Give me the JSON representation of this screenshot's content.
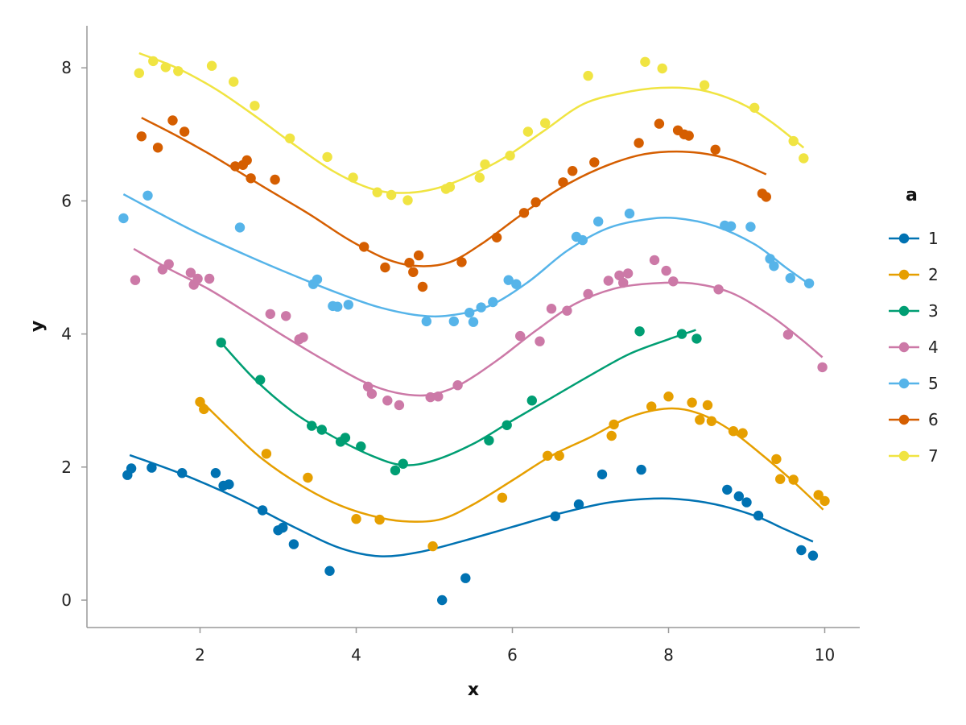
{
  "chart_data": {
    "type": "scatter",
    "xlabel": "x",
    "ylabel": "y",
    "xlim": [
      0.6,
      10.5
    ],
    "ylim": [
      -0.4,
      8.6
    ],
    "xticks": [
      "2",
      "4",
      "6",
      "8",
      "10"
    ],
    "yticks": [
      "0",
      "2",
      "4",
      "6",
      "8"
    ],
    "grid": false,
    "legend": {
      "title": "a",
      "placement": "right"
    },
    "series": [
      {
        "name": "1",
        "color": "#0072B2",
        "points": [
          [
            1.07,
            1.88
          ],
          [
            1.12,
            1.98
          ],
          [
            1.38,
            1.99
          ],
          [
            1.77,
            1.91
          ],
          [
            2.2,
            1.91
          ],
          [
            2.3,
            1.72
          ],
          [
            2.37,
            1.74
          ],
          [
            2.8,
            1.35
          ],
          [
            3.0,
            1.05
          ],
          [
            3.06,
            1.09
          ],
          [
            3.2,
            0.84
          ],
          [
            3.66,
            0.44
          ],
          [
            5.1,
            0.0
          ],
          [
            5.4,
            0.33
          ],
          [
            6.55,
            1.26
          ],
          [
            6.85,
            1.44
          ],
          [
            7.15,
            1.89
          ],
          [
            7.65,
            1.96
          ],
          [
            8.75,
            1.66
          ],
          [
            8.9,
            1.56
          ],
          [
            9.0,
            1.47
          ],
          [
            9.15,
            1.27
          ],
          [
            9.7,
            0.75
          ],
          [
            9.85,
            0.67
          ]
        ],
        "smooth": [
          [
            1.1,
            2.18
          ],
          [
            1.8,
            1.88
          ],
          [
            2.5,
            1.52
          ],
          [
            3.2,
            1.1
          ],
          [
            3.8,
            0.78
          ],
          [
            4.3,
            0.66
          ],
          [
            4.8,
            0.72
          ],
          [
            5.4,
            0.9
          ],
          [
            6.0,
            1.1
          ],
          [
            6.6,
            1.3
          ],
          [
            7.2,
            1.46
          ],
          [
            7.7,
            1.52
          ],
          [
            8.1,
            1.52
          ],
          [
            8.6,
            1.44
          ],
          [
            9.1,
            1.27
          ],
          [
            9.5,
            1.06
          ],
          [
            9.85,
            0.88
          ]
        ]
      },
      {
        "name": "2",
        "color": "#E69F00",
        "points": [
          [
            2.0,
            2.98
          ],
          [
            2.05,
            2.87
          ],
          [
            2.85,
            2.2
          ],
          [
            3.38,
            1.84
          ],
          [
            4.0,
            1.22
          ],
          [
            4.3,
            1.21
          ],
          [
            4.98,
            0.81
          ],
          [
            5.87,
            1.54
          ],
          [
            6.45,
            2.17
          ],
          [
            6.6,
            2.17
          ],
          [
            7.27,
            2.47
          ],
          [
            7.3,
            2.64
          ],
          [
            7.78,
            2.91
          ],
          [
            8.0,
            3.06
          ],
          [
            8.3,
            2.97
          ],
          [
            8.4,
            2.71
          ],
          [
            8.5,
            2.93
          ],
          [
            8.55,
            2.69
          ],
          [
            8.83,
            2.54
          ],
          [
            8.95,
            2.51
          ],
          [
            9.38,
            2.12
          ],
          [
            9.43,
            1.82
          ],
          [
            9.6,
            1.81
          ],
          [
            9.92,
            1.58
          ],
          [
            10.0,
            1.49
          ]
        ],
        "smooth": [
          [
            2.05,
            2.95
          ],
          [
            2.4,
            2.55
          ],
          [
            2.8,
            2.12
          ],
          [
            3.3,
            1.72
          ],
          [
            3.8,
            1.42
          ],
          [
            4.3,
            1.24
          ],
          [
            4.7,
            1.18
          ],
          [
            5.1,
            1.22
          ],
          [
            5.5,
            1.44
          ],
          [
            6.0,
            1.8
          ],
          [
            6.5,
            2.17
          ],
          [
            7.0,
            2.45
          ],
          [
            7.5,
            2.75
          ],
          [
            8.0,
            2.88
          ],
          [
            8.4,
            2.8
          ],
          [
            8.8,
            2.55
          ],
          [
            9.2,
            2.18
          ],
          [
            9.6,
            1.78
          ],
          [
            9.98,
            1.36
          ]
        ]
      },
      {
        "name": "3",
        "color": "#009E73",
        "points": [
          [
            2.27,
            3.87
          ],
          [
            2.77,
            3.31
          ],
          [
            3.43,
            2.62
          ],
          [
            3.56,
            2.56
          ],
          [
            3.8,
            2.38
          ],
          [
            3.86,
            2.44
          ],
          [
            4.06,
            2.31
          ],
          [
            4.5,
            1.95
          ],
          [
            4.6,
            2.05
          ],
          [
            5.7,
            2.4
          ],
          [
            5.93,
            2.63
          ],
          [
            6.25,
            3.0
          ],
          [
            7.63,
            4.04
          ],
          [
            8.17,
            4.0
          ],
          [
            8.36,
            3.93
          ]
        ],
        "smooth": [
          [
            2.27,
            3.87
          ],
          [
            2.7,
            3.32
          ],
          [
            3.2,
            2.82
          ],
          [
            3.7,
            2.46
          ],
          [
            4.2,
            2.17
          ],
          [
            4.6,
            2.03
          ],
          [
            5.0,
            2.1
          ],
          [
            5.5,
            2.35
          ],
          [
            6.0,
            2.7
          ],
          [
            6.5,
            3.04
          ],
          [
            7.0,
            3.38
          ],
          [
            7.5,
            3.7
          ],
          [
            8.0,
            3.92
          ],
          [
            8.35,
            4.06
          ]
        ]
      },
      {
        "name": "4",
        "color": "#CC79A7",
        "points": [
          [
            1.17,
            4.81
          ],
          [
            1.52,
            4.97
          ],
          [
            1.6,
            5.05
          ],
          [
            1.88,
            4.92
          ],
          [
            1.92,
            4.74
          ],
          [
            1.97,
            4.83
          ],
          [
            2.12,
            4.83
          ],
          [
            2.9,
            4.3
          ],
          [
            3.1,
            4.27
          ],
          [
            3.27,
            3.92
          ],
          [
            3.32,
            3.95
          ],
          [
            4.15,
            3.21
          ],
          [
            4.2,
            3.1
          ],
          [
            4.4,
            3.0
          ],
          [
            4.55,
            2.93
          ],
          [
            4.95,
            3.05
          ],
          [
            5.05,
            3.06
          ],
          [
            5.3,
            3.23
          ],
          [
            6.1,
            3.97
          ],
          [
            6.35,
            3.89
          ],
          [
            6.5,
            4.38
          ],
          [
            6.7,
            4.35
          ],
          [
            6.97,
            4.6
          ],
          [
            7.23,
            4.8
          ],
          [
            7.37,
            4.88
          ],
          [
            7.42,
            4.77
          ],
          [
            7.48,
            4.91
          ],
          [
            7.82,
            5.11
          ],
          [
            7.97,
            4.95
          ],
          [
            8.06,
            4.79
          ],
          [
            8.64,
            4.67
          ],
          [
            9.53,
            3.99
          ],
          [
            9.97,
            3.5
          ]
        ],
        "smooth": [
          [
            1.15,
            5.28
          ],
          [
            1.6,
            4.98
          ],
          [
            2.1,
            4.68
          ],
          [
            2.6,
            4.32
          ],
          [
            3.1,
            3.95
          ],
          [
            3.6,
            3.6
          ],
          [
            4.1,
            3.28
          ],
          [
            4.5,
            3.12
          ],
          [
            4.9,
            3.08
          ],
          [
            5.3,
            3.22
          ],
          [
            5.8,
            3.6
          ],
          [
            6.3,
            4.05
          ],
          [
            6.8,
            4.45
          ],
          [
            7.3,
            4.68
          ],
          [
            7.8,
            4.76
          ],
          [
            8.3,
            4.76
          ],
          [
            8.8,
            4.62
          ],
          [
            9.3,
            4.28
          ],
          [
            9.7,
            3.92
          ],
          [
            9.97,
            3.65
          ]
        ]
      },
      {
        "name": "5",
        "color": "#56B4E9",
        "points": [
          [
            1.02,
            5.74
          ],
          [
            1.33,
            6.08
          ],
          [
            2.51,
            5.6
          ],
          [
            3.45,
            4.75
          ],
          [
            3.5,
            4.82
          ],
          [
            3.7,
            4.42
          ],
          [
            3.76,
            4.41
          ],
          [
            3.9,
            4.44
          ],
          [
            4.9,
            4.19
          ],
          [
            5.25,
            4.19
          ],
          [
            5.45,
            4.32
          ],
          [
            5.5,
            4.18
          ],
          [
            5.6,
            4.4
          ],
          [
            5.75,
            4.48
          ],
          [
            5.95,
            4.81
          ],
          [
            6.05,
            4.75
          ],
          [
            6.82,
            5.46
          ],
          [
            6.9,
            5.41
          ],
          [
            7.1,
            5.69
          ],
          [
            7.5,
            5.81
          ],
          [
            8.72,
            5.63
          ],
          [
            8.8,
            5.62
          ],
          [
            9.05,
            5.61
          ],
          [
            9.3,
            5.13
          ],
          [
            9.35,
            5.02
          ],
          [
            9.56,
            4.84
          ],
          [
            9.8,
            4.76
          ]
        ],
        "smooth": [
          [
            1.02,
            6.1
          ],
          [
            1.5,
            5.8
          ],
          [
            2.0,
            5.5
          ],
          [
            2.6,
            5.18
          ],
          [
            3.2,
            4.88
          ],
          [
            3.8,
            4.6
          ],
          [
            4.3,
            4.4
          ],
          [
            4.8,
            4.28
          ],
          [
            5.2,
            4.28
          ],
          [
            5.7,
            4.42
          ],
          [
            6.2,
            4.78
          ],
          [
            6.7,
            5.25
          ],
          [
            7.2,
            5.58
          ],
          [
            7.7,
            5.72
          ],
          [
            8.1,
            5.74
          ],
          [
            8.6,
            5.62
          ],
          [
            9.1,
            5.35
          ],
          [
            9.5,
            5.0
          ],
          [
            9.8,
            4.75
          ]
        ]
      },
      {
        "name": "6",
        "color": "#D55E00",
        "points": [
          [
            1.25,
            6.97
          ],
          [
            1.46,
            6.8
          ],
          [
            1.65,
            7.21
          ],
          [
            1.8,
            7.04
          ],
          [
            2.45,
            6.52
          ],
          [
            2.55,
            6.54
          ],
          [
            2.6,
            6.61
          ],
          [
            2.65,
            6.34
          ],
          [
            2.96,
            6.32
          ],
          [
            4.1,
            5.31
          ],
          [
            4.37,
            5.0
          ],
          [
            4.68,
            5.07
          ],
          [
            4.73,
            4.93
          ],
          [
            4.8,
            5.18
          ],
          [
            4.85,
            4.71
          ],
          [
            5.35,
            5.08
          ],
          [
            5.8,
            5.45
          ],
          [
            6.15,
            5.82
          ],
          [
            6.3,
            5.98
          ],
          [
            6.65,
            6.28
          ],
          [
            6.77,
            6.45
          ],
          [
            7.05,
            6.58
          ],
          [
            7.62,
            6.87
          ],
          [
            7.88,
            7.16
          ],
          [
            8.12,
            7.06
          ],
          [
            8.2,
            7.0
          ],
          [
            8.26,
            6.98
          ],
          [
            8.6,
            6.77
          ],
          [
            9.2,
            6.11
          ],
          [
            9.25,
            6.06
          ]
        ],
        "smooth": [
          [
            1.25,
            7.25
          ],
          [
            1.7,
            6.98
          ],
          [
            2.2,
            6.65
          ],
          [
            2.8,
            6.22
          ],
          [
            3.4,
            5.8
          ],
          [
            3.9,
            5.42
          ],
          [
            4.4,
            5.12
          ],
          [
            4.8,
            5.02
          ],
          [
            5.2,
            5.08
          ],
          [
            5.6,
            5.35
          ],
          [
            6.1,
            5.78
          ],
          [
            6.6,
            6.18
          ],
          [
            7.1,
            6.48
          ],
          [
            7.6,
            6.68
          ],
          [
            8.0,
            6.74
          ],
          [
            8.4,
            6.72
          ],
          [
            8.8,
            6.62
          ],
          [
            9.25,
            6.4
          ]
        ]
      },
      {
        "name": "7",
        "color": "#F0E442",
        "points": [
          [
            1.22,
            7.92
          ],
          [
            1.4,
            8.1
          ],
          [
            1.56,
            8.01
          ],
          [
            1.72,
            7.95
          ],
          [
            2.15,
            8.03
          ],
          [
            2.43,
            7.79
          ],
          [
            2.7,
            7.43
          ],
          [
            3.15,
            6.94
          ],
          [
            3.63,
            6.66
          ],
          [
            3.96,
            6.35
          ],
          [
            4.27,
            6.13
          ],
          [
            4.45,
            6.09
          ],
          [
            4.66,
            6.01
          ],
          [
            5.15,
            6.18
          ],
          [
            5.2,
            6.21
          ],
          [
            5.58,
            6.35
          ],
          [
            5.65,
            6.55
          ],
          [
            5.97,
            6.68
          ],
          [
            6.2,
            7.04
          ],
          [
            6.42,
            7.17
          ],
          [
            6.97,
            7.88
          ],
          [
            7.7,
            8.09
          ],
          [
            7.92,
            7.99
          ],
          [
            8.46,
            7.74
          ],
          [
            9.1,
            7.4
          ],
          [
            9.6,
            6.9
          ],
          [
            9.73,
            6.64
          ]
        ],
        "smooth": [
          [
            1.22,
            8.22
          ],
          [
            1.7,
            8.0
          ],
          [
            2.2,
            7.68
          ],
          [
            2.7,
            7.28
          ],
          [
            3.2,
            6.85
          ],
          [
            3.7,
            6.45
          ],
          [
            4.2,
            6.18
          ],
          [
            4.6,
            6.12
          ],
          [
            5.0,
            6.18
          ],
          [
            5.4,
            6.35
          ],
          [
            5.9,
            6.65
          ],
          [
            6.4,
            7.05
          ],
          [
            6.9,
            7.45
          ],
          [
            7.4,
            7.62
          ],
          [
            7.9,
            7.7
          ],
          [
            8.4,
            7.67
          ],
          [
            8.9,
            7.48
          ],
          [
            9.3,
            7.2
          ],
          [
            9.73,
            6.8
          ]
        ]
      }
    ]
  }
}
